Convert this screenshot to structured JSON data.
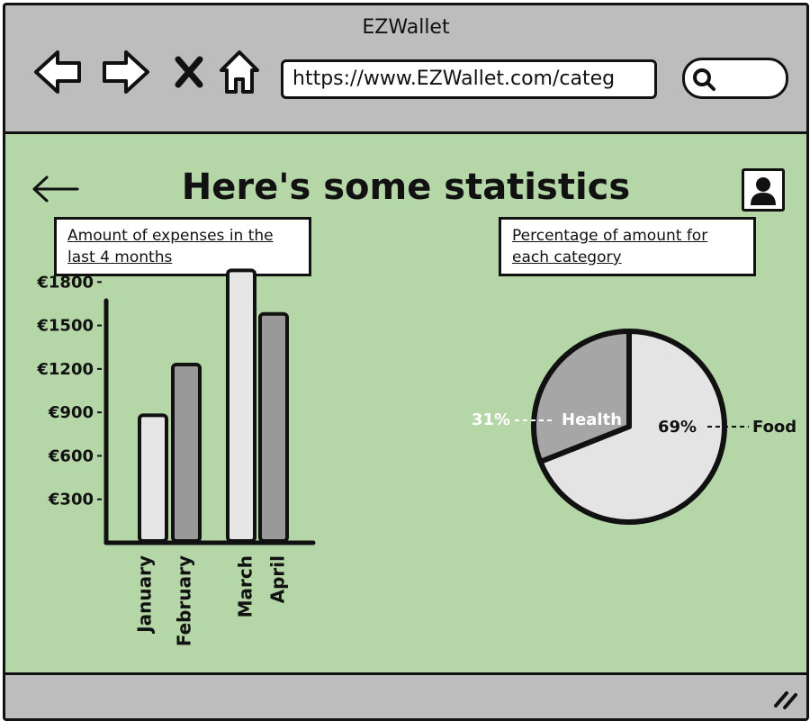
{
  "window": {
    "title": "EZWallet"
  },
  "browser": {
    "url": "https://www.EZWallet.com/categ",
    "icons": [
      "back-arrow-icon",
      "forward-arrow-icon",
      "close-icon",
      "home-icon",
      "search-icon"
    ]
  },
  "page": {
    "title": "Here's some statistics",
    "bar_chart_label": "Amount of expenses in the last 4 months",
    "pie_chart_label": "Percentage of amount for each category",
    "icons": [
      "left-arrow-icon",
      "user-icon",
      "resize-grip-icon"
    ]
  },
  "chart_data": [
    {
      "type": "bar",
      "categories": [
        "January",
        "February",
        "March",
        "April"
      ],
      "values": [
        880,
        1230,
        1880,
        1580
      ],
      "ytick_labels": [
        "€300",
        "€600",
        "€900",
        "€1200",
        "€1500",
        "€1800"
      ],
      "yticks": [
        300,
        600,
        900,
        1200,
        1500,
        1800
      ],
      "ylim": [
        0,
        2400
      ],
      "colors": [
        "#e6e6e6",
        "#999999",
        "#e6e6e6",
        "#999999"
      ]
    },
    {
      "type": "pie",
      "labels": [
        "Health",
        "Food"
      ],
      "values": [
        31,
        69
      ],
      "value_labels": [
        "31%",
        "69%"
      ],
      "colors": [
        "#a6a6a6",
        "#e4e4e4"
      ]
    }
  ]
}
